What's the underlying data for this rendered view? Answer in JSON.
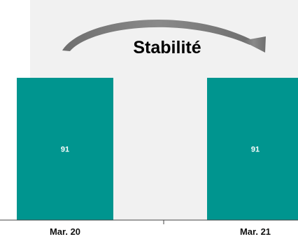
{
  "chart_data": {
    "type": "bar",
    "title": "",
    "xlabel": "",
    "ylabel": "",
    "categories": [
      "Mar. 20",
      "Mar. 21"
    ],
    "series": [
      {
        "values": [
          91,
          91
        ]
      }
    ],
    "ylim": [
      0,
      91
    ],
    "grid": false,
    "legend": "none",
    "annotation": {
      "text": "Stabilité",
      "arrow": "curved, from first category to second category"
    },
    "colors": {
      "bar": "#00958f",
      "bar_label": "#ffffff",
      "highlight_band": "#f1f1f1",
      "arrow": "#7b7b7b",
      "annotation_text": "#111111",
      "axis": "#444444",
      "tick_label": "#111111"
    }
  }
}
